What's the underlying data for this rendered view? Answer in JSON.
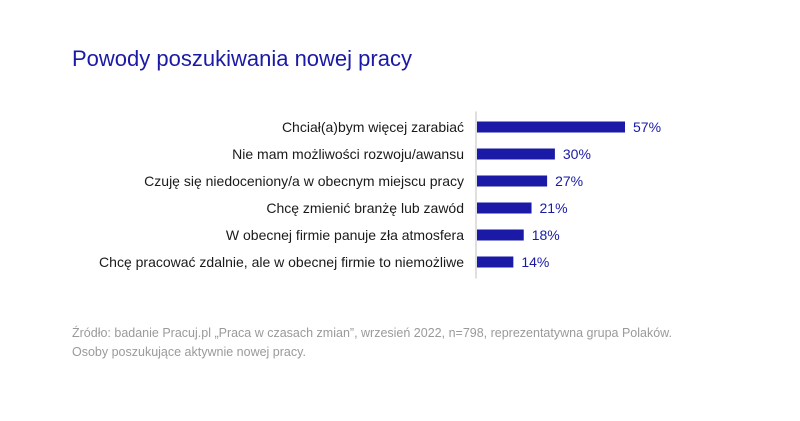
{
  "title": "Powody poszukiwania nowej pracy",
  "source_lines": [
    "Źródło: badanie Pracuj.pl „Praca w czasach zmian”, wrzesień 2022, n=798, reprezentatywna grupa Polaków.",
    "Osoby poszukujące aktywnie nowej pracy."
  ],
  "colors": {
    "bar": "#1a1aa6",
    "label_text": "#1a1a1a",
    "value_text": "#1a1aa6",
    "axis": "#bfbfbf",
    "source_text": "#9a9a9a"
  },
  "chart_data": {
    "type": "bar",
    "orientation": "horizontal",
    "categories": [
      "Chciał(a)bym więcej zarabiać",
      "Nie mam możliwości rozwoju/awansu",
      "Czuję się niedoceniony/a w obecnym miejscu pracy",
      "Chcę zmienić branżę lub zawód",
      "W obecnej firmie panuje zła atmosfera",
      "Chcę pracować zdalnie, ale w obecnej firmie to niemożliwe"
    ],
    "values": [
      57,
      30,
      27,
      21,
      18,
      14
    ],
    "value_labels": [
      "57%",
      "30%",
      "27%",
      "21%",
      "18%",
      "14%"
    ],
    "unit": "%",
    "title": "Powody poszukiwania nowej pracy",
    "xlim": [
      0,
      57
    ],
    "grid": false
  }
}
